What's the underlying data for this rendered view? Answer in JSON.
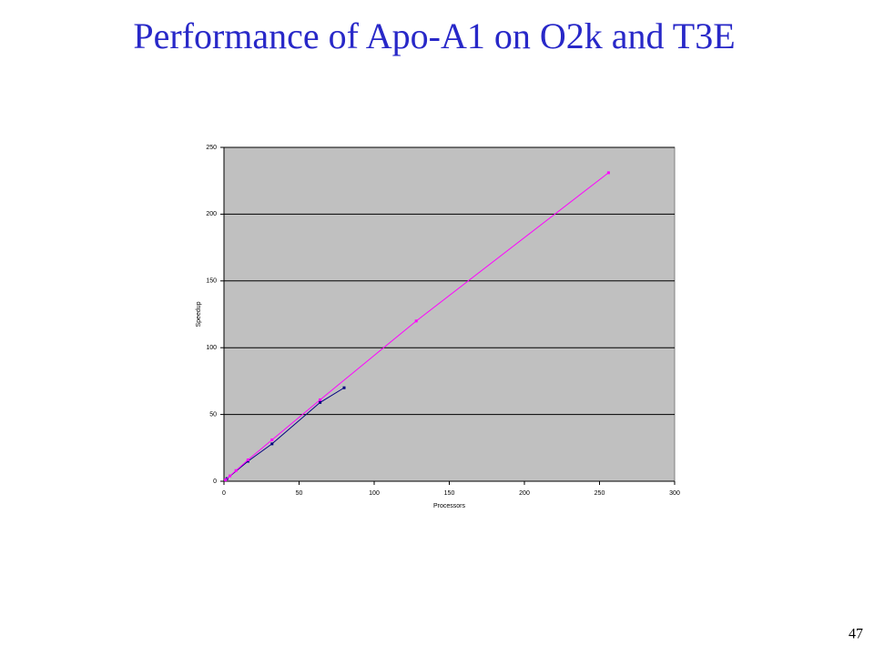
{
  "page_number": "47",
  "chart_data": {
    "type": "line",
    "title": "Performance of Apo-A1 on O2k and T3E",
    "x_label": "Processors",
    "y_label": "Speedup",
    "xlim": [
      0,
      300
    ],
    "xticks": [
      0,
      50,
      100,
      150,
      200,
      250,
      300
    ],
    "ylim": [
      0,
      250
    ],
    "yticks": [
      0,
      50,
      100,
      150,
      200,
      250
    ],
    "grid": true,
    "background": "#c0c0c0",
    "series": [
      {
        "color": "#000080",
        "x": [
          1,
          2,
          16,
          32,
          64,
          80
        ],
        "values": [
          1,
          2,
          15,
          28,
          59,
          70
        ]
      },
      {
        "color": "#ff00ff",
        "x": [
          1,
          4,
          8,
          16,
          32,
          64,
          128,
          256
        ],
        "values": [
          1,
          4,
          8,
          16,
          31,
          61,
          120,
          231
        ]
      }
    ]
  }
}
